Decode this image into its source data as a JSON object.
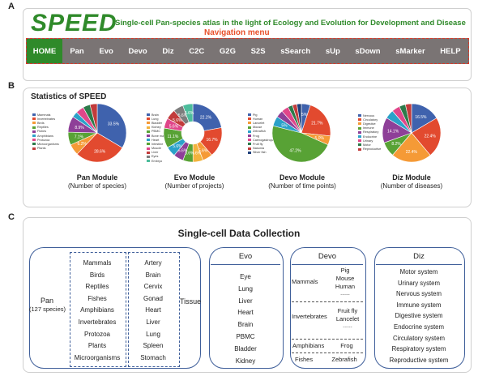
{
  "panels": {
    "a": "A",
    "b": "B",
    "c": "C"
  },
  "header": {
    "logo": "SPEED",
    "tagline": "Single-cell Pan-species atlas in the light of Ecology and Evolution for Development and Disease",
    "nav_caption": "Navigation menu",
    "nav": [
      "HOME",
      "Pan",
      "Evo",
      "Devo",
      "Diz",
      "C2C",
      "G2G",
      "S2S",
      "sSearch",
      "sUp",
      "sDown",
      "sMarker",
      "HELP"
    ]
  },
  "stats": {
    "title": "Statistics of SPEED",
    "modules": [
      {
        "title": "Pan Module",
        "subtitle": "(Number of species)"
      },
      {
        "title": "Evo Module",
        "subtitle": "(Number of projects)"
      },
      {
        "title": "Devo Module",
        "subtitle": "(Number of time points)"
      },
      {
        "title": "Diz Module",
        "subtitle": "(Number of diseases)"
      }
    ]
  },
  "chart_data": [
    {
      "type": "pie",
      "title": "Pan Module",
      "subtitle": "(Number of species)",
      "categories": [
        "Mammals",
        "Invertebrates",
        "Birds",
        "Reptiles",
        "Fishes",
        "Amphibians",
        "Protozoa",
        "Microorganisms",
        "Plants"
      ],
      "values": [
        33.5,
        28.6,
        6.2,
        7.1,
        8.9,
        3.2,
        4.5,
        4.0,
        4.0
      ],
      "labels": [
        "33.5%",
        "28.6%",
        "6.2%",
        "7.1%",
        "8.9%",
        "",
        "",
        "",
        ""
      ],
      "colors": [
        "#3f62ad",
        "#e24a2f",
        "#f59a36",
        "#58a235",
        "#8e3f98",
        "#2ba1c9",
        "#e0468a",
        "#2c7a4a",
        "#c23b3b"
      ],
      "legend": "left"
    },
    {
      "type": "pie",
      "donut": true,
      "title": "Evo Module",
      "subtitle": "(Number of projects)",
      "categories": [
        "Brain",
        "Lung",
        "Bladder",
        "Kidney",
        "PBMC",
        "Bone marrow",
        "Heart",
        "Intestine",
        "Muscle",
        "Liver",
        "Eyes",
        "Embryo"
      ],
      "values": [
        22.2,
        16.7,
        5.6,
        5.6,
        5.6,
        5.6,
        5.6,
        11.1,
        5.6,
        5.6,
        5.6,
        5.6
      ],
      "labels": [
        "22.2%",
        "16.7%",
        "5.6%",
        "5.6%",
        "5.6%",
        "5.6%",
        "5.6%",
        "11.1%",
        "5.6%",
        "5.6%",
        "5.6%",
        "5.6%"
      ],
      "colors": [
        "#3f62ad",
        "#e24a2f",
        "#f59a36",
        "#f2b33d",
        "#58a235",
        "#8e3f98",
        "#2ba1c9",
        "#58a235",
        "#e0468a",
        "#c23b3b",
        "#7d7d7d",
        "#4dbd9c"
      ],
      "legend": "left"
    },
    {
      "type": "pie",
      "title": "Devo Module",
      "subtitle": "(Number of time points)",
      "categories": [
        "Pig",
        "Human",
        "Lancelet",
        "Mouse",
        "Zebrafish",
        "Frog",
        "Caenogastropoda",
        "Fruit fly",
        "Nasonia",
        "Silver fish"
      ],
      "values": [
        5.0,
        21.7,
        5.0,
        47.2,
        5.5,
        4.0,
        4.0,
        2.6,
        2.5,
        2.5
      ],
      "labels": [
        "5%",
        "21.7%",
        "5.0%",
        "47.2%",
        "5%",
        "",
        "",
        "",
        "",
        ""
      ],
      "colors": [
        "#3f62ad",
        "#e24a2f",
        "#f59a36",
        "#58a235",
        "#2ba1c9",
        "#8e3f98",
        "#e0468a",
        "#2c7a4a",
        "#c23b3b",
        "#1f3f7a"
      ],
      "legend": "left"
    },
    {
      "type": "pie",
      "title": "Diz Module",
      "subtitle": "(Number of diseases)",
      "categories": [
        "Nervous",
        "Circulatory",
        "Digestive",
        "Immune",
        "Respiratory",
        "Endocrine",
        "Urinary",
        "Motor",
        "Reproductive"
      ],
      "values": [
        16.5,
        22.4,
        22.4,
        8.2,
        14.1,
        5.0,
        4.5,
        3.5,
        3.4
      ],
      "labels": [
        "16.5%",
        "22.4%",
        "22.4%",
        "8.2%",
        "14.1%",
        "",
        "",
        "",
        ""
      ],
      "colors": [
        "#3f62ad",
        "#e24a2f",
        "#f59a36",
        "#58a235",
        "#8e3f98",
        "#2ba1c9",
        "#e0468a",
        "#2c7a4a",
        "#c23b3b"
      ],
      "legend": "left"
    }
  ],
  "collection": {
    "title": "Single-cell  Data Collection",
    "pan": {
      "name": "Pan",
      "count": "(127 species)",
      "species": [
        "Mammals",
        "Birds",
        "Reptiles",
        "Fishes",
        "Amphibians",
        "Invertebrates",
        "Protozoa",
        "Plants",
        "Microorganisms"
      ],
      "tissues": [
        "Artery",
        "Brain",
        "Cervix",
        "Gonad",
        "Heart",
        "Liver",
        "Lung",
        "Spleen",
        "Stomach"
      ],
      "tissue_label": "Tissue"
    },
    "evo": {
      "name": "Evo",
      "items": [
        "Eye",
        "Lung",
        "Liver",
        "Heart",
        "Brain",
        "PBMC",
        "Bladder",
        "Kidney"
      ]
    },
    "devo": {
      "name": "Devo",
      "mammals": {
        "label": "Mammals",
        "items": [
          "Pig",
          "Mouse",
          "Human",
          "......"
        ]
      },
      "invertebrates": {
        "label": "Invertebrates",
        "items": [
          "Fruit fly",
          "Lancelet",
          "......"
        ]
      },
      "amphibians": {
        "label": "Amphibians",
        "items": [
          "Frog"
        ]
      },
      "fishes": {
        "label": "Fishes",
        "items": [
          "Zebrafish"
        ]
      }
    },
    "diz": {
      "name": "Diz",
      "items": [
        "Motor system",
        "Urinary system",
        "Nervous system",
        "Immune system",
        "Digestive system",
        "Endocrine system",
        "Circulatory system",
        "Respiratory system",
        "Reproductive system"
      ]
    }
  }
}
